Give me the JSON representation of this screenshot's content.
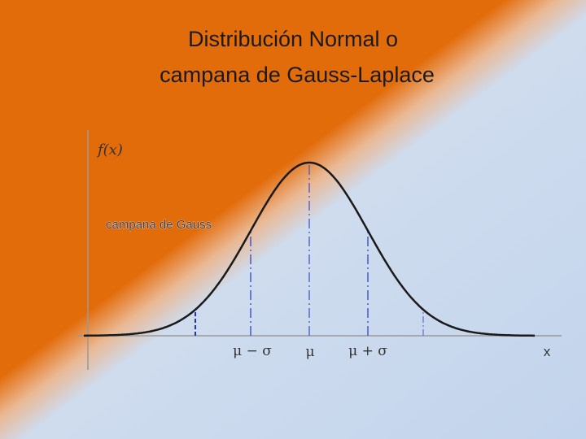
{
  "header": {
    "title_lines": [
      "Distribución Normal o",
      "campana de Gauss-Laplace"
    ]
  },
  "diagram": {
    "y_axis_label": "f(x)",
    "curve_label": "campana de Gauss",
    "x_labels": [
      "μ − σ",
      "μ",
      "μ + σ"
    ],
    "x_axis_label": "x"
  }
}
